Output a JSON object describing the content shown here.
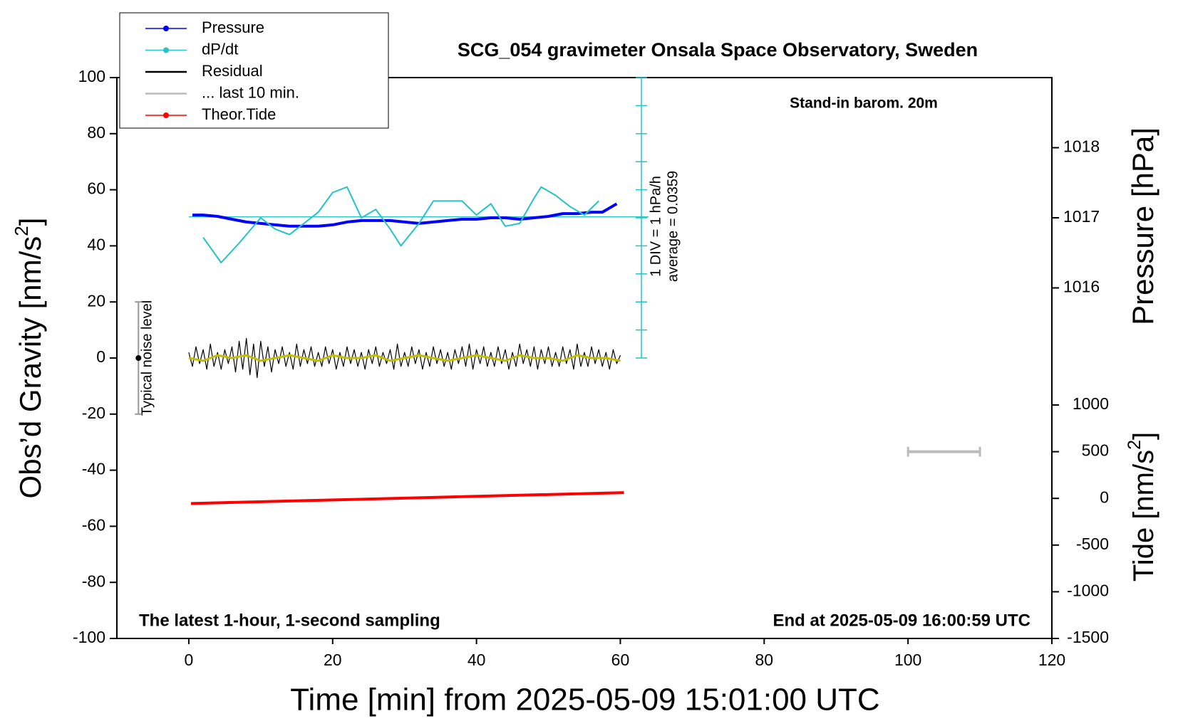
{
  "chart_data": {
    "type": "line",
    "title": "SCG_054 gravimeter Onsala Space Observatory, Sweden",
    "subtitle": "Stand-in barom. 20m",
    "note_left": "The latest 1-hour, 1-second sampling",
    "note_right": "End at 2025-05-09 16:00:59 UTC",
    "xlabel": "Time [min] from 2025-05-09 15:01:00 UTC",
    "ylabel": [
      "Obs’d Gravity [nm/s",
      "2",
      "]"
    ],
    "y2label": "Pressure [hPa]",
    "y3label": [
      "Tide [nm/s",
      "2",
      "]"
    ],
    "xlim": [
      -10,
      120
    ],
    "xticks": [
      0,
      20,
      40,
      60,
      80,
      100,
      120
    ],
    "ylim": [
      -100,
      100
    ],
    "yticks": [
      -100,
      -80,
      -60,
      -40,
      -20,
      0,
      20,
      40,
      60,
      80,
      100
    ],
    "y2lim": [
      1015,
      1019
    ],
    "y2ticks": [
      1016,
      1017,
      1018
    ],
    "y3lim": [
      -1500,
      1000
    ],
    "y3ticks": [
      -1500,
      -1000,
      -500,
      0,
      500,
      1000
    ],
    "dpdt_axis": {
      "lim": [
        -5,
        5
      ],
      "ticks": [
        -5,
        -4,
        -3,
        -2,
        -1,
        0,
        1,
        2,
        3,
        4,
        5
      ],
      "label": "1 DIV = 1 hPa/h",
      "average": 0.0359,
      "average_label": "average = 0.0359"
    },
    "noise_level": {
      "label": "Typical noise level",
      "x": -7,
      "value": 0,
      "error": 20
    },
    "series": [
      {
        "name": "Pressure",
        "color": "#0000ff",
        "axis": "y2",
        "markers": true,
        "width": 4,
        "x": [
          0.5,
          2,
          4,
          6,
          8,
          10,
          12,
          14,
          16,
          18,
          20,
          22,
          24,
          26,
          28,
          30,
          32,
          34,
          36,
          38,
          40,
          42,
          44,
          46,
          48,
          50,
          52,
          54,
          56,
          57.5,
          59.5
        ],
        "values": [
          1017.04,
          1017.04,
          1017.02,
          1016.98,
          1016.94,
          1016.92,
          1016.9,
          1016.88,
          1016.88,
          1016.88,
          1016.9,
          1016.94,
          1016.96,
          1016.96,
          1016.96,
          1016.94,
          1016.92,
          1016.94,
          1016.96,
          1016.98,
          1016.98,
          1017,
          1017,
          1016.98,
          1017,
          1017.02,
          1017.06,
          1017.06,
          1017.08,
          1017.08,
          1017.2
        ]
      },
      {
        "name": "dP/dt",
        "color": "#22c4c4",
        "axis": "dpdt",
        "markers": true,
        "width": 2,
        "x": [
          2,
          4.5,
          7,
          10,
          12,
          14,
          16,
          18,
          20,
          22,
          24,
          26,
          28,
          29.5,
          32,
          34,
          38,
          40,
          42,
          44,
          46,
          48,
          49,
          51,
          53,
          55,
          57
        ],
        "values": [
          -0.7,
          -1.6,
          -0.9,
          0,
          -0.4,
          -0.6,
          -0.2,
          0.2,
          0.9,
          1.1,
          0,
          0.3,
          -0.4,
          -1,
          -0.2,
          0.6,
          0.6,
          0.1,
          0.5,
          -0.3,
          -0.2,
          0.7,
          1.1,
          0.8,
          0.4,
          0.1,
          0.6
        ]
      },
      {
        "name": "Residual",
        "color": "#000000",
        "axis": "y",
        "markers": false,
        "width": 1.2,
        "x": [
          0,
          0.5,
          1,
          1.5,
          2,
          2.5,
          3,
          3.5,
          4,
          4.5,
          5,
          5.5,
          6,
          6.5,
          7,
          7.5,
          8,
          8.5,
          9,
          9.5,
          10,
          10.5,
          11,
          11.5,
          12,
          12.5,
          13,
          13.5,
          14,
          14.5,
          15,
          15.5,
          16,
          16.5,
          17,
          17.5,
          18,
          18.5,
          19,
          19.5,
          20,
          20.5,
          21,
          21.5,
          22,
          22.5,
          23,
          23.5,
          24,
          24.5,
          25,
          25.5,
          26,
          26.5,
          27,
          27.5,
          28,
          28.5,
          29,
          29.5,
          30,
          30.5,
          31,
          31.5,
          32,
          32.5,
          33,
          33.5,
          34,
          34.5,
          35,
          35.5,
          36,
          36.5,
          37,
          37.5,
          38,
          38.5,
          39,
          39.5,
          40,
          40.5,
          41,
          41.5,
          42,
          42.5,
          43,
          43.5,
          44,
          44.5,
          45,
          45.5,
          46,
          46.5,
          47,
          47.5,
          48,
          48.5,
          49,
          49.5,
          50,
          50.5,
          51,
          51.5,
          52,
          52.5,
          53,
          53.5,
          54,
          54.5,
          55,
          55.5,
          56,
          56.5,
          57,
          57.5,
          58,
          58.5,
          59,
          59.5,
          60
        ],
        "values": [
          2,
          -3,
          4,
          -2,
          3,
          -4,
          5,
          -3,
          2,
          -4,
          3,
          -2,
          4,
          -5,
          6,
          -4,
          7,
          -6,
          5,
          -7,
          6,
          -3,
          4,
          -5,
          3,
          -2,
          4,
          -3,
          2,
          -4,
          5,
          -3,
          3,
          -2,
          4,
          -3,
          2,
          -3,
          4,
          -2,
          3,
          -4,
          2,
          -3,
          4,
          -2,
          3,
          -3,
          2,
          -4,
          3,
          -2,
          4,
          -3,
          2,
          -2,
          3,
          -4,
          5,
          -3,
          2,
          -3,
          4,
          -2,
          3,
          -4,
          2,
          -3,
          4,
          -2,
          3,
          -3,
          2,
          -4,
          3,
          -2,
          4,
          -3,
          5,
          -4,
          3,
          -2,
          4,
          -3,
          2,
          -3,
          4,
          -2,
          3,
          -4,
          2,
          -3,
          5,
          -2,
          3,
          -3,
          4,
          -4,
          3,
          -2,
          4,
          -3,
          2,
          -3,
          4,
          -2,
          3,
          -4,
          5,
          -3,
          2,
          -3,
          4,
          -2,
          3,
          -3,
          2,
          -4,
          3,
          -2,
          1
        ]
      },
      {
        "color": "#bfbf00",
        "axis": "y",
        "markers": false,
        "width": 3,
        "x": [
          0,
          2,
          4,
          6,
          8,
          10,
          12,
          14,
          16,
          18,
          20,
          22,
          24,
          26,
          28,
          30,
          32,
          34,
          36,
          38,
          40,
          42,
          44,
          46,
          48,
          50,
          52,
          54,
          56,
          58,
          60
        ],
        "values": [
          0,
          -1,
          1,
          0,
          1,
          -1,
          0,
          1,
          0,
          -1,
          1,
          0,
          0,
          1,
          -1,
          0,
          1,
          0,
          -1,
          0,
          1,
          0,
          -1,
          1,
          0,
          0,
          -1,
          1,
          0,
          0,
          -1
        ]
      },
      {
        "name": "... last 10 min.",
        "color": "#bbbbbb",
        "axis": "y3",
        "markers": false,
        "width": 4,
        "x": [
          100,
          110
        ],
        "values": [
          500,
          500
        ]
      },
      {
        "name": "Theor.Tide",
        "color": "#ff0000",
        "axis": "y3",
        "markers": true,
        "width": 4,
        "x": [
          0.3,
          60.5
        ],
        "values": [
          -55,
          62
        ]
      }
    ]
  }
}
